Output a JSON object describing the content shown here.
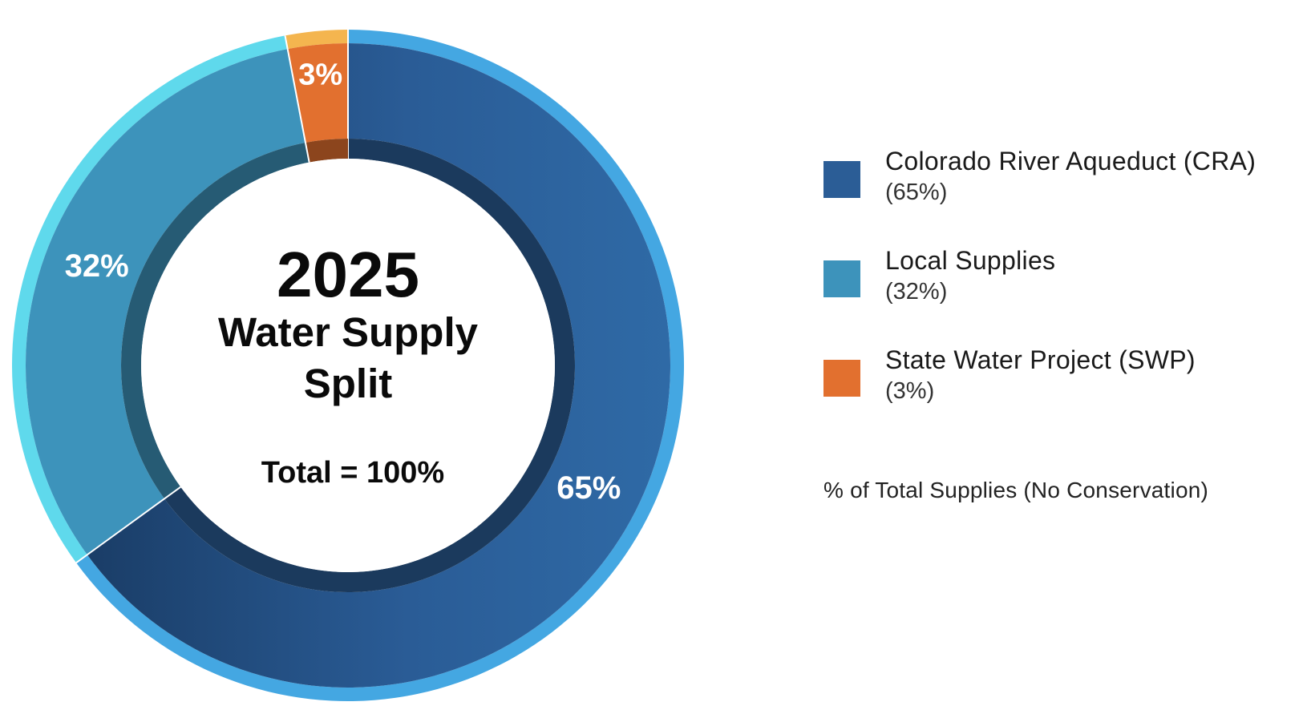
{
  "chart_data": {
    "type": "pie",
    "style": "donut",
    "categories": [
      "Colorado River Aqueduct (CRA)",
      "Local Supplies",
      "State Water Project (SWP)"
    ],
    "values": [
      65,
      32,
      3
    ],
    "value_labels": [
      "65%",
      "32%",
      "3%"
    ],
    "legend_values": [
      "(65%)",
      "(32%)",
      "(3%)"
    ],
    "colors": [
      "#2b5d96",
      "#3d93bb",
      "#e2702f"
    ],
    "rim_colors": [
      "#44a7e2",
      "#5fd9ec",
      "#f4b54f"
    ],
    "center": {
      "year": "2025",
      "title_line1": "Water Supply",
      "title_line2": "Split",
      "total": "Total = 100%"
    },
    "legend_placement": "right",
    "note": "% of Total Supplies (No Conservation)"
  }
}
